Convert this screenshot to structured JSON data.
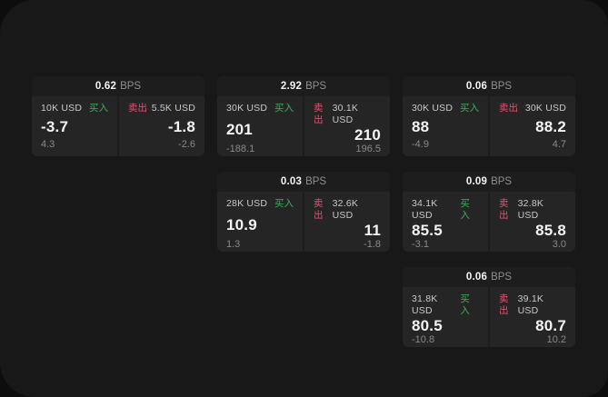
{
  "page": {
    "background": "#0d0d0d",
    "panel_background": "#181818"
  },
  "colors": {
    "page_bg": "#0d0d0d",
    "panel_bg": "#181818",
    "card_bg": "#1d1d1d",
    "tile_bg": "#252525",
    "buy_green": "#3fae5c",
    "sell_red": "#de5570",
    "value_white": "#f5f5f5",
    "label_gray": "#c9c9c9",
    "muted_gray": "#8a8a8a",
    "bps_gray": "#8f8f8f"
  },
  "labels": {
    "buy": "买入",
    "sell": "卖出",
    "bps_unit": "BPS"
  },
  "cards": [
    {
      "row": 1,
      "col": 1,
      "bps": "0.62",
      "buy": {
        "amount": "10K USD",
        "price": "-3.7",
        "delta": "4.3"
      },
      "sell": {
        "amount": "5.5K USD",
        "price": "-1.8",
        "delta": "-2.6"
      }
    },
    {
      "row": 1,
      "col": 2,
      "bps": "2.92",
      "buy": {
        "amount": "30K USD",
        "price": "201",
        "delta": "-188.1"
      },
      "sell": {
        "amount": "30.1K USD",
        "price": "210",
        "delta": "196.5"
      }
    },
    {
      "row": 1,
      "col": 3,
      "bps": "0.06",
      "buy": {
        "amount": "30K USD",
        "price": "88",
        "delta": "-4.9"
      },
      "sell": {
        "amount": "30K USD",
        "price": "88.2",
        "delta": "4.7"
      }
    },
    {
      "row": 2,
      "col": 2,
      "bps": "0.03",
      "buy": {
        "amount": "28K USD",
        "price": "10.9",
        "delta": "1.3"
      },
      "sell": {
        "amount": "32.6K USD",
        "price": "11",
        "delta": "-1.8"
      }
    },
    {
      "row": 2,
      "col": 3,
      "bps": "0.09",
      "buy": {
        "amount": "34.1K USD",
        "price": "85.5",
        "delta": "-3.1"
      },
      "sell": {
        "amount": "32.8K USD",
        "price": "85.8",
        "delta": "3.0"
      }
    },
    {
      "row": 3,
      "col": 3,
      "bps": "0.06",
      "buy": {
        "amount": "31.8K USD",
        "price": "80.5",
        "delta": "-10.8"
      },
      "sell": {
        "amount": "39.1K USD",
        "price": "80.7",
        "delta": "10.2"
      }
    }
  ]
}
